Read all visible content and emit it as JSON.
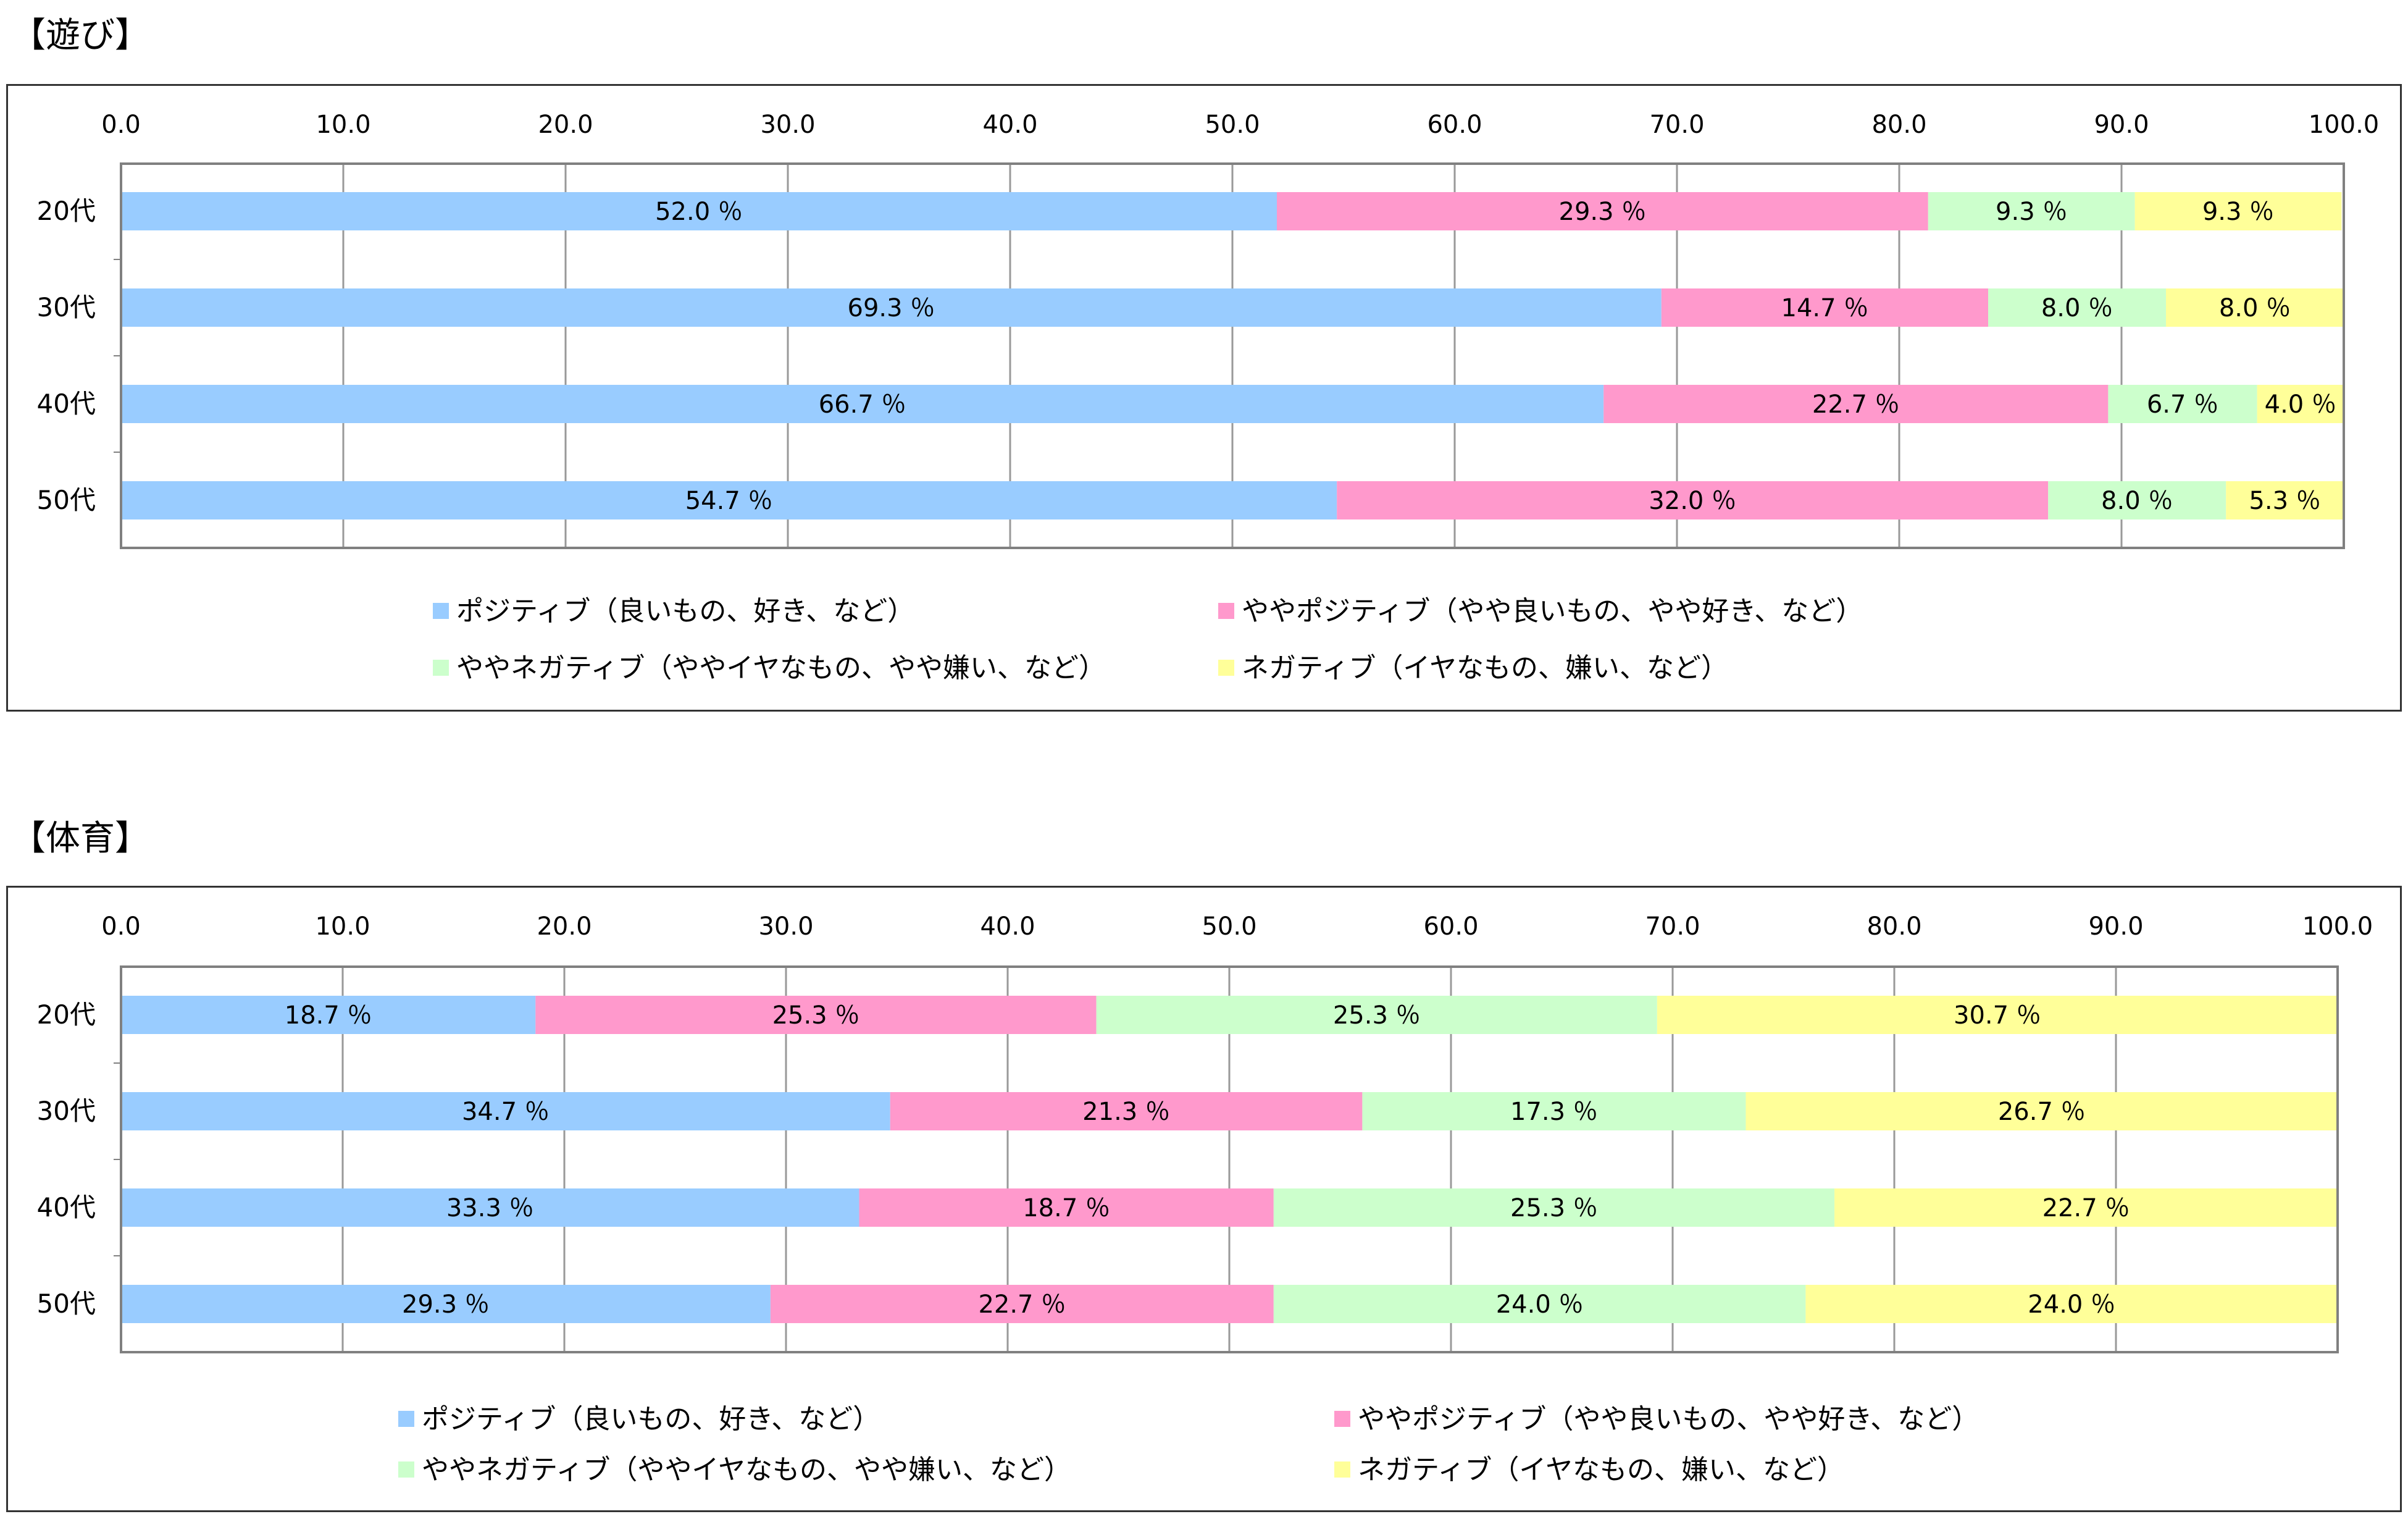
{
  "colors": {
    "positive": "#99ccff",
    "somewhat_positive": "#ff99cc",
    "somewhat_negative": "#ccffcc",
    "negative": "#ffff99",
    "grid": "#999999",
    "frame": "#808080"
  },
  "chart_data": [
    {
      "type": "bar",
      "orientation": "horizontal",
      "stacked": true,
      "title": "【遊び】",
      "xlim": [
        0,
        100
      ],
      "xticks": [
        "0.0",
        "10.0",
        "20.0",
        "30.0",
        "40.0",
        "50.0",
        "60.0",
        "70.0",
        "80.0",
        "90.0",
        "100.0"
      ],
      "x_axis_position": "top",
      "grid": "vertical",
      "categories": [
        "20代",
        "30代",
        "40代",
        "50代"
      ],
      "series": [
        {
          "name": "ポジティブ（良いもの、好き、など）",
          "color_key": "positive",
          "values": [
            52.0,
            69.3,
            66.7,
            54.7
          ]
        },
        {
          "name": "ややポジティブ（やや良いもの、やや好き、など）",
          "color_key": "somewhat_positive",
          "values": [
            29.3,
            14.7,
            22.7,
            32.0
          ]
        },
        {
          "name": "ややネガティブ（ややイヤなもの、やや嫌い、など）",
          "color_key": "somewhat_negative",
          "values": [
            9.3,
            8.0,
            6.7,
            8.0
          ]
        },
        {
          "name": "ネガティブ（イヤなもの、嫌い、など）",
          "color_key": "negative",
          "values": [
            9.3,
            8.0,
            4.0,
            5.3
          ]
        }
      ],
      "value_unit": "％",
      "legend": "bottom"
    },
    {
      "type": "bar",
      "orientation": "horizontal",
      "stacked": true,
      "title": "【体育】",
      "xlim": [
        0,
        100
      ],
      "xticks": [
        "0.0",
        "10.0",
        "20.0",
        "30.0",
        "40.0",
        "50.0",
        "60.0",
        "70.0",
        "80.0",
        "90.0",
        "100.0"
      ],
      "x_axis_position": "top",
      "grid": "vertical",
      "categories": [
        "20代",
        "30代",
        "40代",
        "50代"
      ],
      "series": [
        {
          "name": "ポジティブ（良いもの、好き、など）",
          "color_key": "positive",
          "values": [
            18.7,
            34.7,
            33.3,
            29.3
          ]
        },
        {
          "name": "ややポジティブ（やや良いもの、やや好き、など）",
          "color_key": "somewhat_positive",
          "values": [
            25.3,
            21.3,
            18.7,
            22.7
          ]
        },
        {
          "name": "ややネガティブ（ややイヤなもの、やや嫌い、など）",
          "color_key": "somewhat_negative",
          "values": [
            25.3,
            17.3,
            25.3,
            24.0
          ]
        },
        {
          "name": "ネガティブ（イヤなもの、嫌い、など）",
          "color_key": "negative",
          "values": [
            30.7,
            26.7,
            22.7,
            24.0
          ]
        }
      ],
      "value_unit": "％",
      "legend": "bottom"
    }
  ]
}
